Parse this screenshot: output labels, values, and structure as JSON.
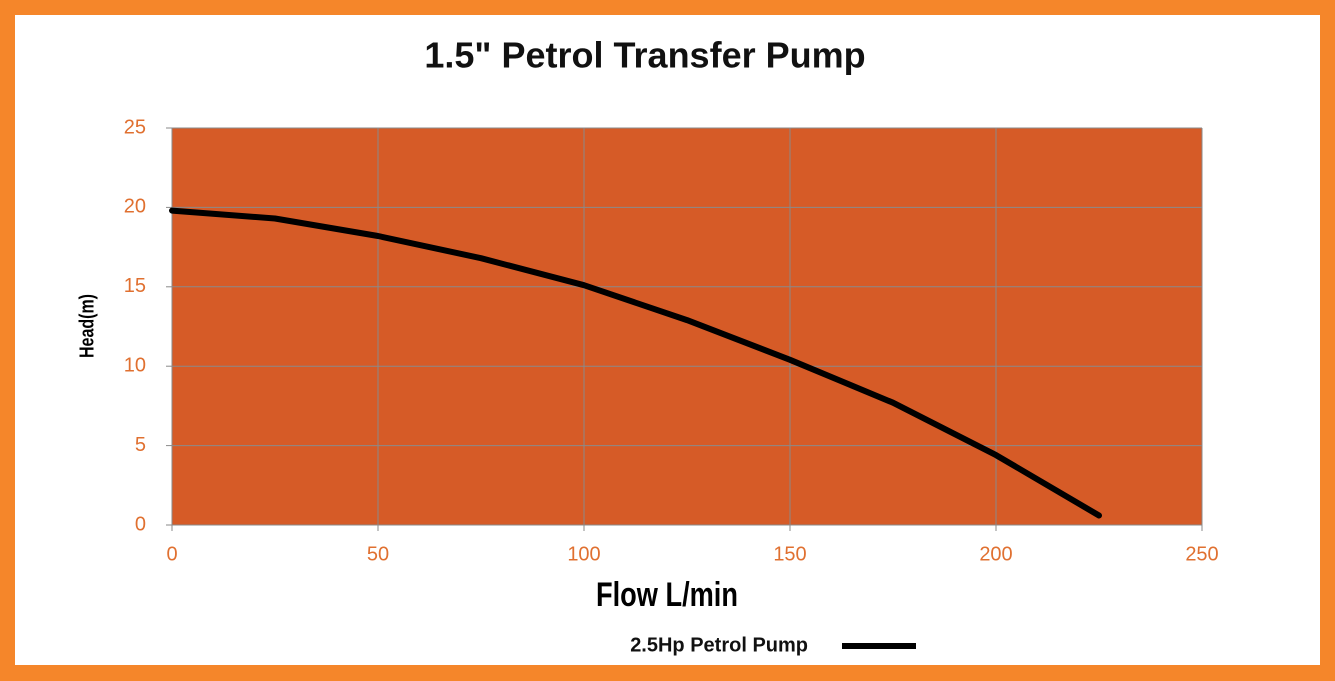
{
  "chart_data": {
    "type": "line",
    "title": "1.5\" Petrol Transfer Pump",
    "x_label": "Flow L/min",
    "y_label": "Head(m)",
    "x": [
      0,
      25,
      50,
      75,
      100,
      125,
      150,
      175,
      200,
      225
    ],
    "series": [
      {
        "name": "2.5Hp Petrol Pump",
        "color": "#000000",
        "values": [
          19.8,
          19.3,
          18.2,
          16.8,
          15.1,
          12.9,
          10.4,
          7.7,
          4.4,
          0.6
        ]
      }
    ],
    "xlim": [
      0,
      250
    ],
    "xticks": [
      0,
      50,
      100,
      150,
      200,
      250
    ],
    "ylim": [
      0,
      25
    ],
    "yticks": [
      0,
      5,
      10,
      15,
      20,
      25
    ],
    "grid": true,
    "plot_background": "#D65B27",
    "tick_color": "#E07030",
    "legend": "bottom"
  }
}
